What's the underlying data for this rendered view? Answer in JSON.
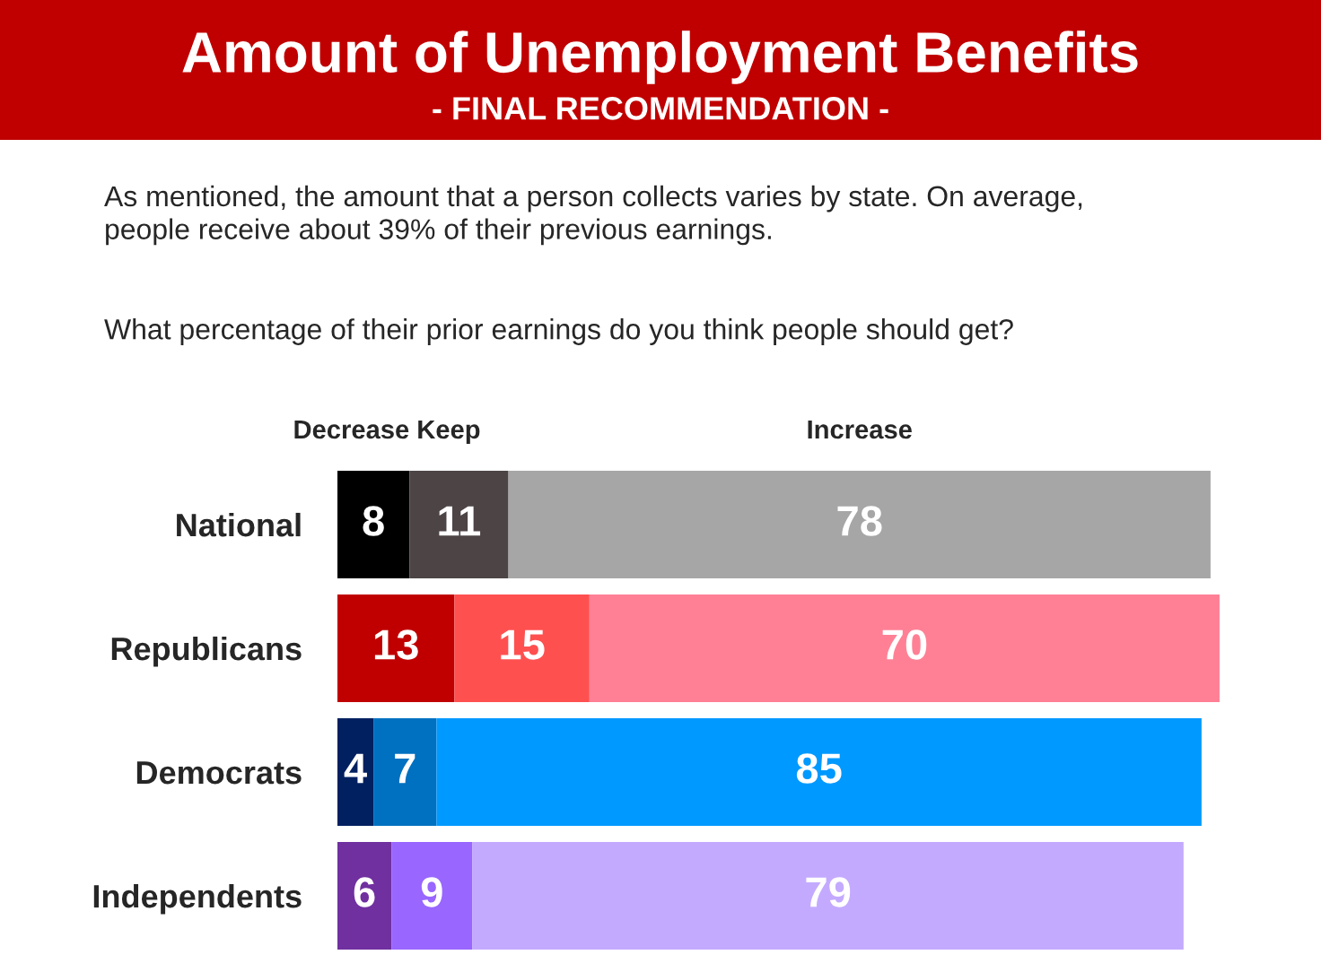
{
  "chart_data": {
    "type": "bar",
    "orientation": "horizontal",
    "stacked": true,
    "data_labels": true,
    "title": "Amount of Unemployment Benefits",
    "subtitle": "- FINAL RECOMMENDATION -",
    "annotations": [
      "As mentioned, the amount that a person collects varies by state. On average,\npeople receive about 39% of their previous earnings.",
      "What percentage of their prior earnings do you think people should get?"
    ],
    "categories": [
      "National",
      "Republicans",
      "Democrats",
      "Independents"
    ],
    "series": [
      {
        "name": "Decrease",
        "values": [
          8,
          13,
          4,
          6
        ],
        "colors": [
          "#000000",
          "#c00000",
          "#002060",
          "#7030a0"
        ]
      },
      {
        "name": "Keep",
        "values": [
          11,
          15,
          7,
          9
        ],
        "colors": [
          "#4d4446",
          "#ff5050",
          "#0070c0",
          "#9966ff"
        ]
      },
      {
        "name": "Increase",
        "values": [
          78,
          70,
          85,
          79
        ],
        "colors": [
          "#a6a6a6",
          "#ff8095",
          "#0099ff",
          "#c4aaff"
        ]
      }
    ]
  }
}
